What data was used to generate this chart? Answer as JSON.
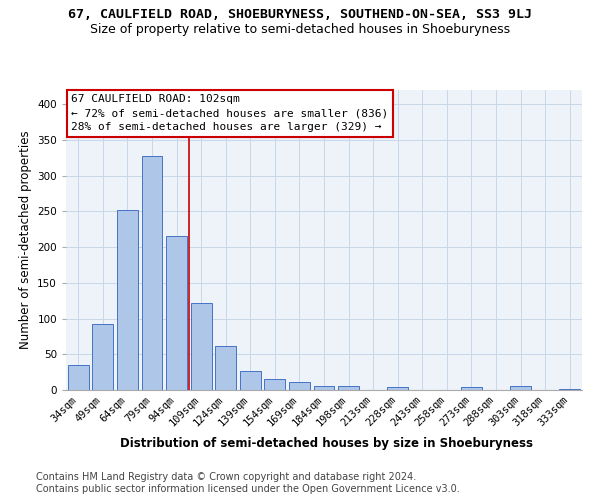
{
  "title_line1": "67, CAULFIELD ROAD, SHOEBURYNESS, SOUTHEND-ON-SEA, SS3 9LJ",
  "title_line2": "Size of property relative to semi-detached houses in Shoeburyness",
  "xlabel": "Distribution of semi-detached houses by size in Shoeburyness",
  "ylabel": "Number of semi-detached properties",
  "categories": [
    "34sqm",
    "49sqm",
    "64sqm",
    "79sqm",
    "94sqm",
    "109sqm",
    "124sqm",
    "139sqm",
    "154sqm",
    "169sqm",
    "184sqm",
    "198sqm",
    "213sqm",
    "228sqm",
    "243sqm",
    "258sqm",
    "273sqm",
    "288sqm",
    "303sqm",
    "318sqm",
    "333sqm"
  ],
  "values": [
    35,
    92,
    252,
    328,
    215,
    122,
    62,
    27,
    16,
    11,
    6,
    5,
    0,
    4,
    0,
    0,
    4,
    0,
    5,
    0,
    2
  ],
  "bar_color": "#aec6e8",
  "bar_edge_color": "#4472c4",
  "vline_color": "#cc0000",
  "grid_color": "#c8d8e8",
  "bg_color": "#eef2f9",
  "annotation_box_edge": "#cc0000",
  "pct_smaller": 72,
  "n_smaller": 836,
  "pct_larger": 28,
  "n_larger": 329,
  "subject_label": "67 CAULFIELD ROAD: 102sqm",
  "footer_line1": "Contains HM Land Registry data © Crown copyright and database right 2024.",
  "footer_line2": "Contains public sector information licensed under the Open Government Licence v3.0.",
  "ylim_max": 420,
  "yticks": [
    0,
    50,
    100,
    150,
    200,
    250,
    300,
    350,
    400
  ],
  "title_fontsize": 9.5,
  "subtitle_fontsize": 9,
  "ylabel_fontsize": 8.5,
  "tick_fontsize": 7.5,
  "annot_fontsize": 8,
  "xlabel_fontsize": 8.5,
  "footer_fontsize": 7
}
